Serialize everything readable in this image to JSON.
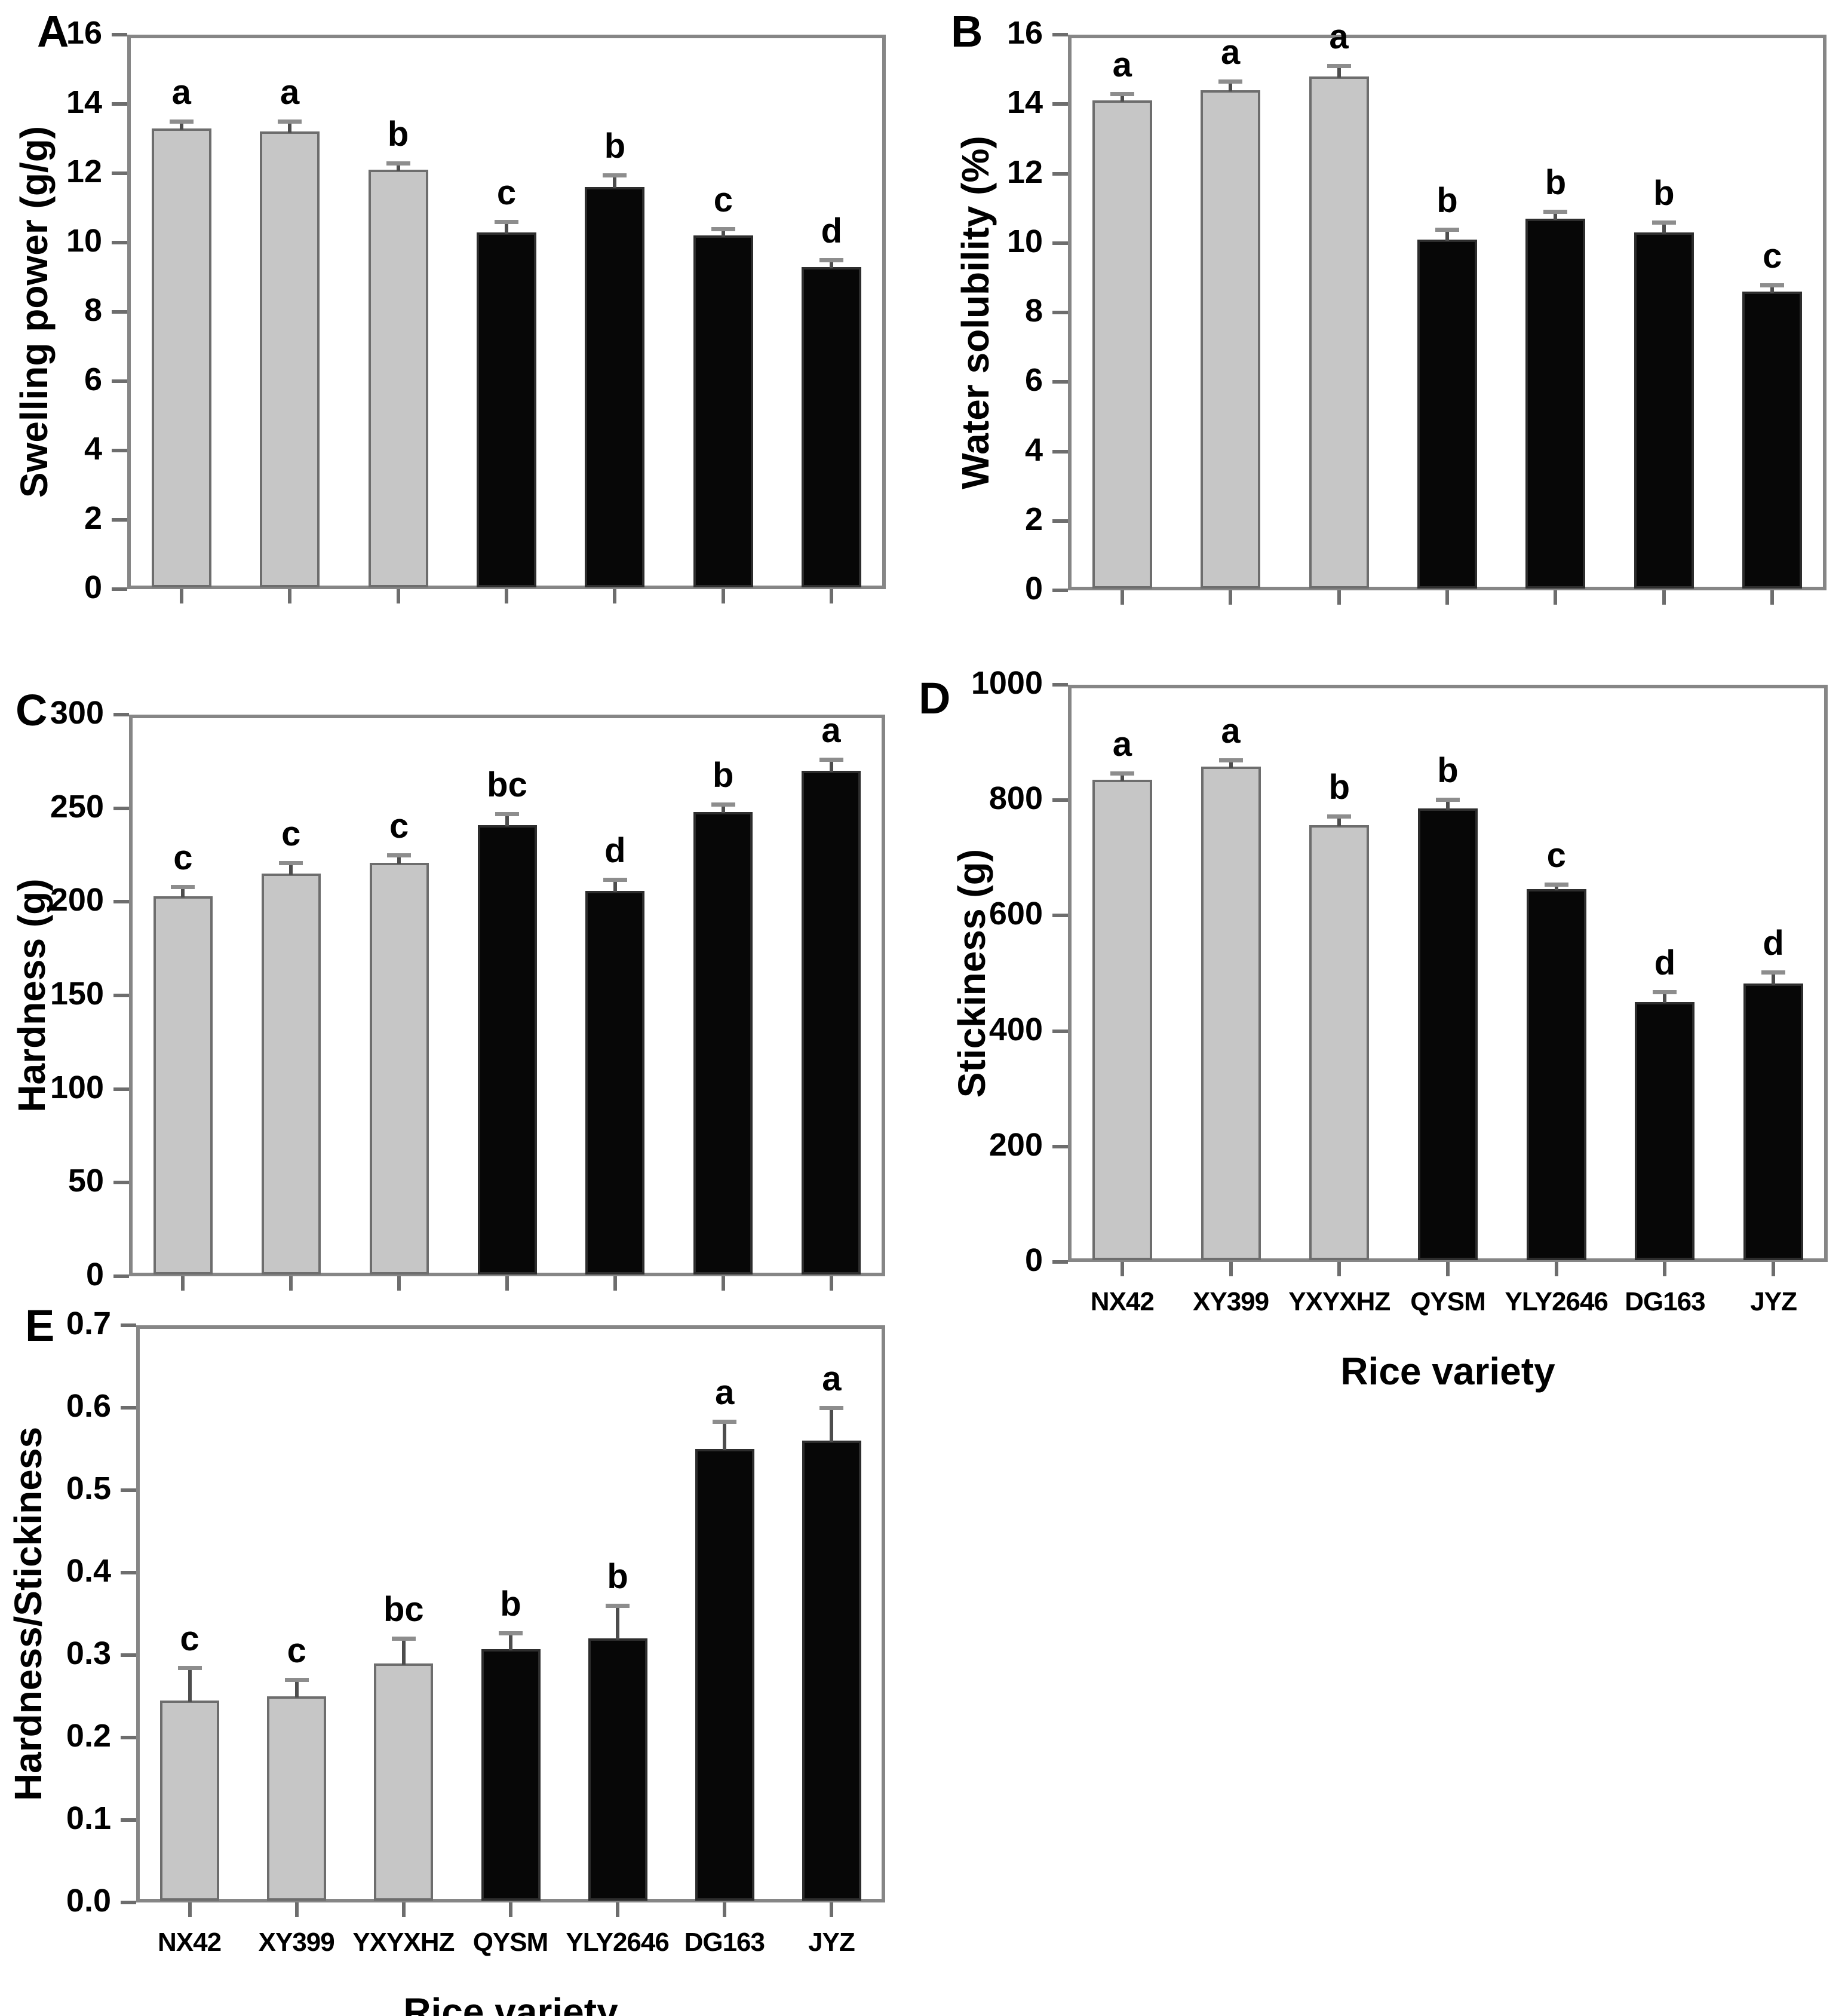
{
  "figure": {
    "xlabel": "Rice variety",
    "categories": [
      "NX42",
      "XY399",
      "YXYXHZ",
      "QYSM",
      "YLY2646",
      "DG163",
      "JYZ"
    ],
    "gray_bar_count": 3,
    "colors": {
      "background": "#ffffff",
      "gray_bar_fill": "#c6c6c6",
      "gray_bar_border": "#6d6d6d",
      "black_bar_fill": "#070707",
      "black_bar_border": "#2d2d2d",
      "frame": "#868686",
      "tick": "#6d6d6d",
      "error_bar": "#4d4d4d",
      "error_cap": "#8d8d8d",
      "text": "#000000"
    }
  },
  "chart_data": [
    {
      "type": "bar",
      "panel_letter": "A",
      "ylabel": "Swelling power (g/g)",
      "ylim": [
        0,
        16
      ],
      "ytick_labels": [
        "0",
        "2",
        "4",
        "6",
        "8",
        "10",
        "12",
        "14",
        "16"
      ],
      "categories": [
        "NX42",
        "XY399",
        "YXYXHZ",
        "QYSM",
        "YLY2646",
        "DG163",
        "JYZ"
      ],
      "values": [
        13.3,
        13.2,
        12.1,
        10.3,
        11.6,
        10.2,
        9.3
      ],
      "errors": [
        0.2,
        0.3,
        0.2,
        0.3,
        0.35,
        0.2,
        0.2
      ],
      "sig_letters": [
        "a",
        "a",
        "b",
        "c",
        "b",
        "c",
        "d"
      ],
      "show_x_labels": false,
      "grid": false,
      "legend": "none"
    },
    {
      "type": "bar",
      "panel_letter": "B",
      "ylabel": "Water solubility (%)",
      "ylim": [
        0,
        16
      ],
      "ytick_labels": [
        "0",
        "2",
        "4",
        "6",
        "8",
        "10",
        "12",
        "14",
        "16"
      ],
      "categories": [
        "NX42",
        "XY399",
        "YXYXHZ",
        "QYSM",
        "YLY2646",
        "DG163",
        "JYZ"
      ],
      "values": [
        14.1,
        14.4,
        14.8,
        10.1,
        10.7,
        10.3,
        8.6
      ],
      "errors": [
        0.2,
        0.25,
        0.3,
        0.3,
        0.2,
        0.3,
        0.2
      ],
      "sig_letters": [
        "a",
        "a",
        "a",
        "b",
        "b",
        "b",
        "c"
      ],
      "show_x_labels": false,
      "grid": false,
      "legend": "none"
    },
    {
      "type": "bar",
      "panel_letter": "C",
      "ylabel": "Hardness (g)",
      "ylim": [
        0,
        300
      ],
      "ytick_labels": [
        "0",
        "50",
        "100",
        "150",
        "200",
        "250",
        "300"
      ],
      "categories": [
        "NX42",
        "XY399",
        "YXYXHZ",
        "QYSM",
        "YLY2646",
        "DG163",
        "JYZ"
      ],
      "values": [
        203,
        215,
        221,
        241,
        206,
        248,
        270
      ],
      "errors": [
        5,
        6,
        4,
        6,
        6,
        4,
        6
      ],
      "sig_letters": [
        "c",
        "c",
        "c",
        "bc",
        "d",
        "b",
        "a"
      ],
      "show_x_labels": false,
      "grid": false,
      "legend": "none"
    },
    {
      "type": "bar",
      "panel_letter": "D",
      "ylabel": "Stickiness (g)",
      "ylim": [
        0,
        1000
      ],
      "ytick_labels": [
        "0",
        "200",
        "400",
        "600",
        "800",
        "1000"
      ],
      "categories": [
        "NX42",
        "XY399",
        "YXYXHZ",
        "QYSM",
        "YLY2646",
        "DG163",
        "JYZ"
      ],
      "values": [
        835,
        858,
        757,
        786,
        646,
        450,
        482
      ],
      "errors": [
        12,
        12,
        15,
        15,
        8,
        18,
        20
      ],
      "sig_letters": [
        "a",
        "a",
        "b",
        "b",
        "c",
        "d",
        "d"
      ],
      "show_x_labels": true,
      "grid": false,
      "legend": "none"
    },
    {
      "type": "bar",
      "panel_letter": "E",
      "ylabel": "Hardness/Stickiness",
      "ylim": [
        0,
        0.7
      ],
      "ytick_labels": [
        "0.0",
        "0.1",
        "0.2",
        "0.3",
        "0.4",
        "0.5",
        "0.6",
        "0.7"
      ],
      "categories": [
        "NX42",
        "XY399",
        "YXYXHZ",
        "QYSM",
        "YLY2646",
        "DG163",
        "JYZ"
      ],
      "values": [
        0.245,
        0.25,
        0.29,
        0.307,
        0.32,
        0.55,
        0.56
      ],
      "errors": [
        0.04,
        0.02,
        0.03,
        0.02,
        0.04,
        0.033,
        0.04
      ],
      "sig_letters": [
        "c",
        "c",
        "bc",
        "b",
        "b",
        "a",
        "a"
      ],
      "show_x_labels": true,
      "grid": false,
      "legend": "none"
    }
  ]
}
